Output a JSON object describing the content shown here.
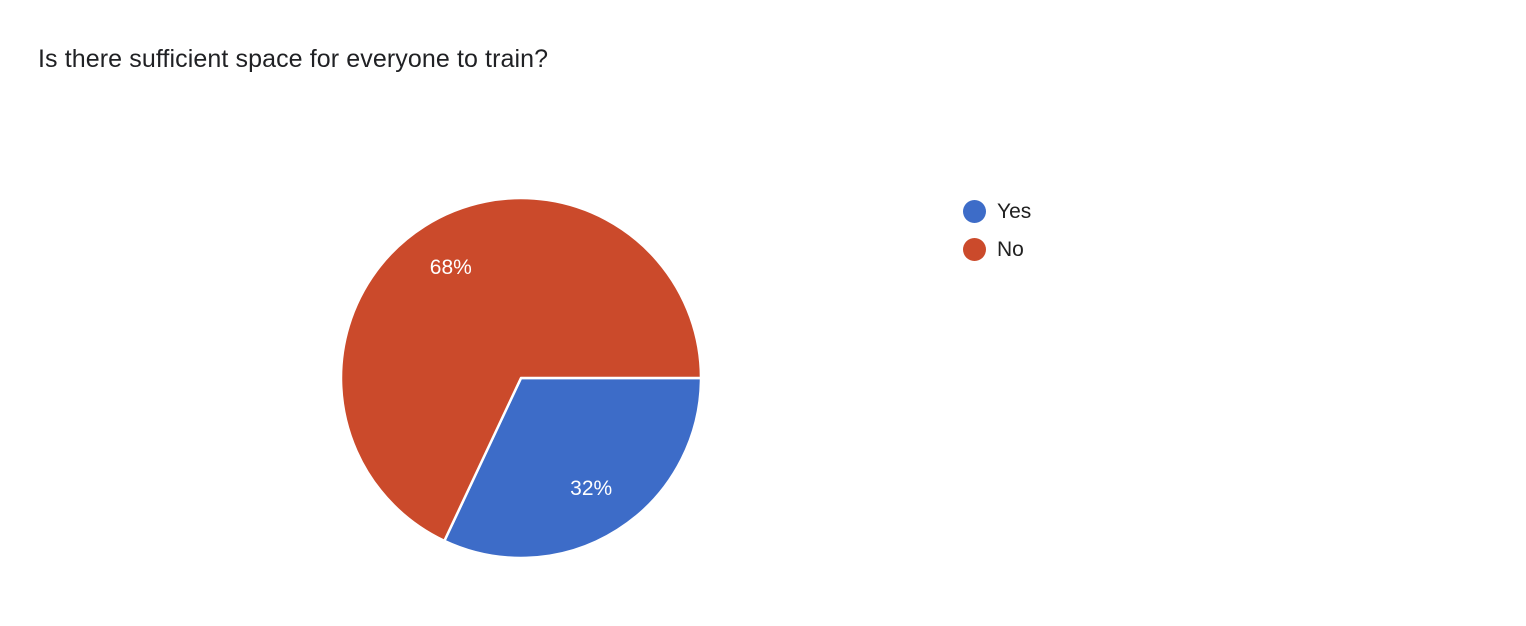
{
  "header": {
    "title": "Is there sufficient space for everyone to train?"
  },
  "chart_data": {
    "type": "pie",
    "title": "Is there sufficient space for everyone to train?",
    "labels": [
      "Yes",
      "No"
    ],
    "values": [
      32,
      68
    ],
    "unit": "%",
    "slice_labels": [
      "32%",
      "68%"
    ],
    "colors": [
      "#3D6CC8",
      "#CB4A2B"
    ],
    "slice_label_color": "#ffffff",
    "separator_color": "#ffffff",
    "start_angle_deg": 0,
    "direction": "clockwise",
    "legend_position": "right",
    "legend_text_color": "#212121",
    "title_color": "#202124",
    "background": "#ffffff"
  }
}
